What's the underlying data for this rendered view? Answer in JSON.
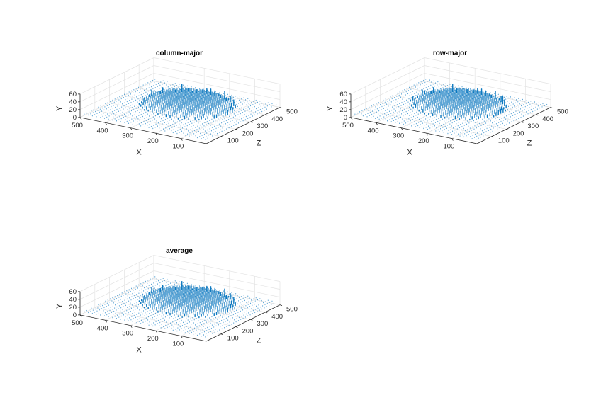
{
  "chart_data": [
    {
      "type": "scatter",
      "title": "column-major",
      "xlabel": "X",
      "ylabel": "Y",
      "zlabel": "Z",
      "xlim": [
        0,
        500
      ],
      "ylim": [
        0,
        60
      ],
      "zlim": [
        0,
        500
      ],
      "xticks": [
        100,
        200,
        300,
        400,
        500
      ],
      "yticks": [
        0,
        20,
        40,
        60
      ],
      "zticks": [
        100,
        200,
        300,
        400,
        500
      ],
      "marker_color": "#0072BD",
      "grid": true,
      "series": [
        {
          "shape": "disk-depth-map",
          "floor_y": 8,
          "disk_center_x": 250,
          "disk_center_z": 300,
          "disk_radius": 160,
          "peak_y": 60,
          "ridge": "back-edge"
        }
      ]
    },
    {
      "type": "scatter",
      "title": "row-major",
      "xlabel": "X",
      "ylabel": "Y",
      "zlabel": "Z",
      "xlim": [
        0,
        500
      ],
      "ylim": [
        0,
        60
      ],
      "zlim": [
        0,
        500
      ],
      "xticks": [
        100,
        200,
        300,
        400,
        500
      ],
      "yticks": [
        0,
        20,
        40,
        60
      ],
      "zticks": [
        100,
        200,
        300,
        400,
        500
      ],
      "marker_color": "#0072BD",
      "grid": true,
      "series": [
        {
          "shape": "disk-depth-map",
          "floor_y": 8,
          "disk_center_x": 250,
          "disk_center_z": 300,
          "disk_radius": 160,
          "peak_y": 60,
          "ridge": "back-edge"
        }
      ]
    },
    {
      "type": "scatter",
      "title": "average",
      "xlabel": "X",
      "ylabel": "Y",
      "zlabel": "Z",
      "xlim": [
        0,
        500
      ],
      "ylim": [
        0,
        60
      ],
      "zlim": [
        0,
        500
      ],
      "xticks": [
        100,
        200,
        300,
        400,
        500
      ],
      "yticks": [
        0,
        20,
        40,
        60
      ],
      "zticks": [
        100,
        200,
        300,
        400,
        500
      ],
      "marker_color": "#0072BD",
      "grid": true,
      "series": [
        {
          "shape": "disk-depth-map",
          "floor_y": 8,
          "disk_center_x": 250,
          "disk_center_z": 300,
          "disk_radius": 160,
          "peak_y": 60,
          "ridge": "back-edge"
        }
      ]
    }
  ]
}
